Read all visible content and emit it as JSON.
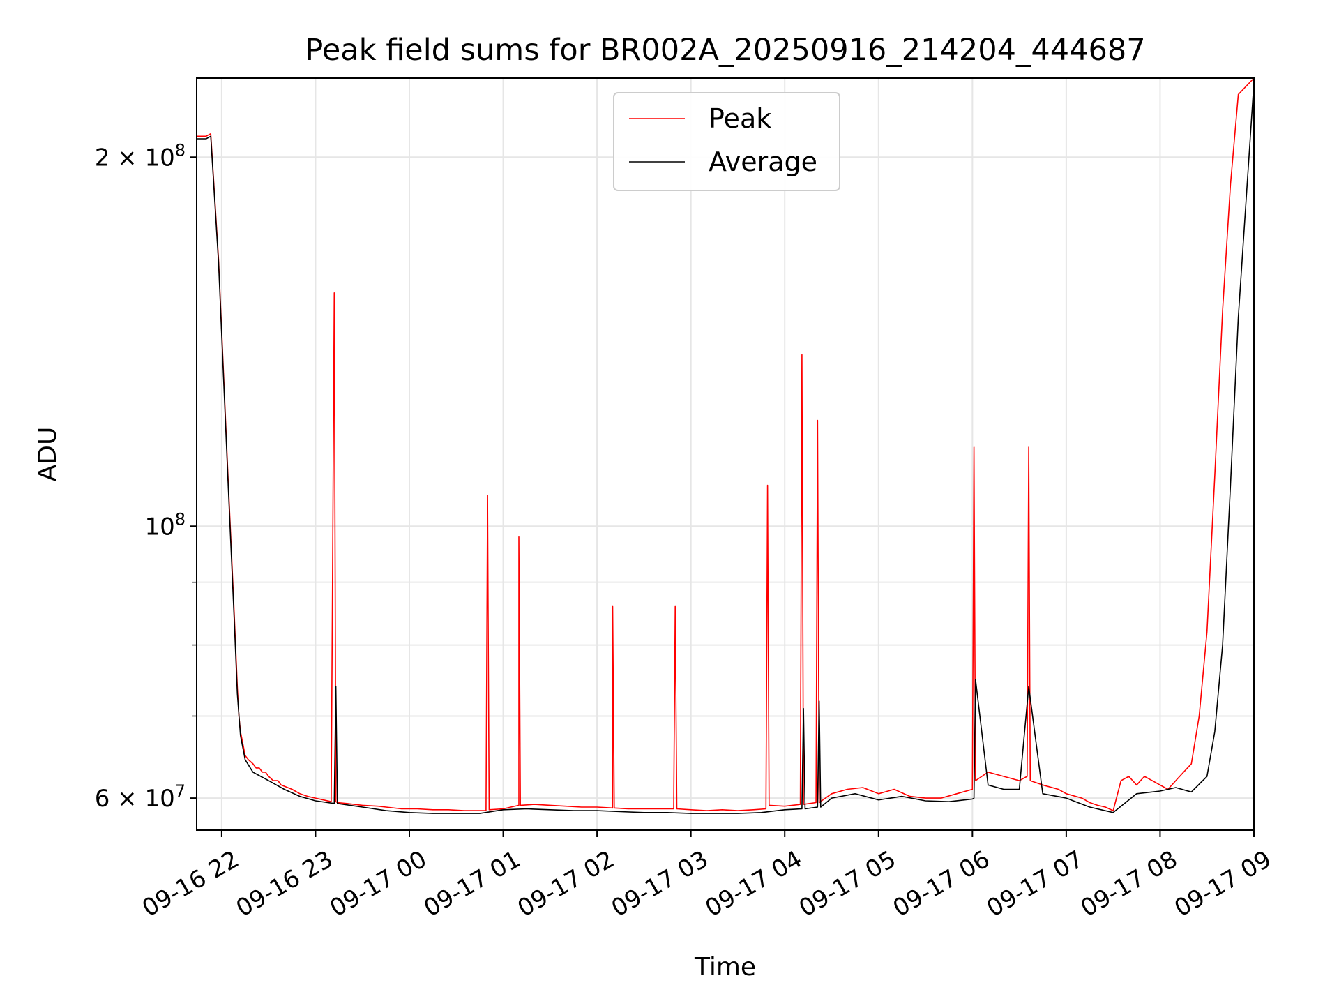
{
  "chart_data": {
    "type": "line",
    "title": "Peak field sums for BR002A_20250916_214204_444687",
    "xlabel": "Time",
    "ylabel": "ADU",
    "yscale": "log",
    "grid": true,
    "legend_placement": "upper center",
    "xlim": [
      "2025-09-16T21:44",
      "2025-09-17T09:00"
    ],
    "ylim": [
      56500000,
      232000000
    ],
    "x_ticks": [
      {
        "value": "2025-09-16T22:00",
        "label": "09-16 22"
      },
      {
        "value": "2025-09-16T23:00",
        "label": "09-16 23"
      },
      {
        "value": "2025-09-17T00:00",
        "label": "09-17 00"
      },
      {
        "value": "2025-09-17T01:00",
        "label": "09-17 01"
      },
      {
        "value": "2025-09-17T02:00",
        "label": "09-17 02"
      },
      {
        "value": "2025-09-17T03:00",
        "label": "09-17 03"
      },
      {
        "value": "2025-09-17T04:00",
        "label": "09-17 04"
      },
      {
        "value": "2025-09-17T05:00",
        "label": "09-17 05"
      },
      {
        "value": "2025-09-17T06:00",
        "label": "09-17 06"
      },
      {
        "value": "2025-09-17T07:00",
        "label": "09-17 07"
      },
      {
        "value": "2025-09-17T08:00",
        "label": "09-17 08"
      },
      {
        "value": "2025-09-17T09:00",
        "label": "09-17 09"
      }
    ],
    "y_major_ticks": [
      {
        "value": 60000000,
        "label_base": "6",
        "label_mid": " × 10",
        "label_exp": "7"
      },
      {
        "value": 100000000,
        "label_base": "",
        "label_mid": "10",
        "label_exp": "8"
      },
      {
        "value": 200000000,
        "label_base": "2",
        "label_mid": " × 10",
        "label_exp": "8"
      }
    ],
    "y_minor_ticks": [
      70000000,
      80000000,
      90000000
    ],
    "series": [
      {
        "name": "Peak",
        "color": "#ff0000",
        "x": [
          "2025-09-16T21:44",
          "2025-09-16T21:50",
          "2025-09-16T21:53",
          "2025-09-16T21:58",
          "2025-09-16T22:04",
          "2025-09-16T22:08",
          "2025-09-16T22:10",
          "2025-09-16T22:11",
          "2025-09-16T22:12",
          "2025-09-16T22:14",
          "2025-09-16T22:15",
          "2025-09-16T22:17",
          "2025-09-16T22:20",
          "2025-09-16T22:22",
          "2025-09-16T22:24",
          "2025-09-16T22:26",
          "2025-09-16T22:28",
          "2025-09-16T22:30",
          "2025-09-16T22:33",
          "2025-09-16T22:35",
          "2025-09-16T22:36",
          "2025-09-16T22:38",
          "2025-09-16T22:45",
          "2025-09-16T22:50",
          "2025-09-16T22:55",
          "2025-09-16T23:00",
          "2025-09-16T23:05",
          "2025-09-16T23:10",
          "2025-09-16T23:12",
          "2025-09-16T23:13",
          "2025-09-16T23:14",
          "2025-09-16T23:20",
          "2025-09-16T23:30",
          "2025-09-16T23:40",
          "2025-09-16T23:45",
          "2025-09-16T23:55",
          "2025-09-17T00:05",
          "2025-09-17T00:15",
          "2025-09-17T00:25",
          "2025-09-17T00:35",
          "2025-09-17T00:45",
          "2025-09-17T00:49",
          "2025-09-17T00:50",
          "2025-09-17T00:51",
          "2025-09-17T01:00",
          "2025-09-17T01:10",
          "2025-09-17T01:10",
          "2025-09-17T01:11",
          "2025-09-17T01:20",
          "2025-09-17T01:30",
          "2025-09-17T01:40",
          "2025-09-17T01:50",
          "2025-09-17T02:00",
          "2025-09-17T02:10",
          "2025-09-17T02:10",
          "2025-09-17T02:11",
          "2025-09-17T02:20",
          "2025-09-17T02:30",
          "2025-09-17T02:40",
          "2025-09-17T02:49",
          "2025-09-17T02:50",
          "2025-09-17T02:51",
          "2025-09-17T03:00",
          "2025-09-17T03:10",
          "2025-09-17T03:20",
          "2025-09-17T03:30",
          "2025-09-17T03:40",
          "2025-09-17T03:48",
          "2025-09-17T03:49",
          "2025-09-17T03:50",
          "2025-09-17T04:00",
          "2025-09-17T04:10",
          "2025-09-17T04:11",
          "2025-09-17T04:12",
          "2025-09-17T04:20",
          "2025-09-17T04:21",
          "2025-09-17T04:22",
          "2025-09-17T04:30",
          "2025-09-17T04:40",
          "2025-09-17T04:50",
          "2025-09-17T05:00",
          "2025-09-17T05:10",
          "2025-09-17T05:20",
          "2025-09-17T05:30",
          "2025-09-17T05:40",
          "2025-09-17T05:50",
          "2025-09-17T06:00",
          "2025-09-17T06:01",
          "2025-09-17T06:02",
          "2025-09-17T06:10",
          "2025-09-17T06:20",
          "2025-09-17T06:30",
          "2025-09-17T06:35",
          "2025-09-17T06:36",
          "2025-09-17T06:37",
          "2025-09-17T06:45",
          "2025-09-17T06:55",
          "2025-09-17T07:00",
          "2025-09-17T07:10",
          "2025-09-17T07:15",
          "2025-09-17T07:20",
          "2025-09-17T07:25",
          "2025-09-17T07:30",
          "2025-09-17T07:35",
          "2025-09-17T07:40",
          "2025-09-17T07:45",
          "2025-09-17T07:50",
          "2025-09-17T07:55",
          "2025-09-17T08:00",
          "2025-09-17T08:05",
          "2025-09-17T08:10",
          "2025-09-17T08:15",
          "2025-09-17T08:20",
          "2025-09-17T08:25",
          "2025-09-17T08:30",
          "2025-09-17T08:35",
          "2025-09-17T08:40",
          "2025-09-17T08:45",
          "2025-09-17T08:50",
          "2025-09-17T09:00"
        ],
        "y": [
          208000000,
          208000000,
          209000000,
          165000000,
          110000000,
          85000000,
          74000000,
          70000000,
          68000000,
          66000000,
          65000000,
          64500000,
          64000000,
          63500000,
          63500000,
          63000000,
          63000000,
          62500000,
          62000000,
          62000000,
          62000000,
          61500000,
          61000000,
          60500000,
          60200000,
          60000000,
          59800000,
          59600000,
          155000000,
          59600000,
          59500000,
          59400000,
          59200000,
          59100000,
          59000000,
          58800000,
          58800000,
          58700000,
          58700000,
          58600000,
          58600000,
          58600000,
          106000000,
          58700000,
          58800000,
          59200000,
          98000000,
          59200000,
          59300000,
          59200000,
          59100000,
          59000000,
          59000000,
          58900000,
          86000000,
          58900000,
          58800000,
          58800000,
          58800000,
          58800000,
          86000000,
          58800000,
          58700000,
          58600000,
          58700000,
          58600000,
          58700000,
          58800000,
          108000000,
          59200000,
          59100000,
          59300000,
          138000000,
          59300000,
          59500000,
          122000000,
          59500000,
          60500000,
          61000000,
          61200000,
          60500000,
          61000000,
          60200000,
          60000000,
          60000000,
          60500000,
          61000000,
          116000000,
          62000000,
          63000000,
          62500000,
          62000000,
          62500000,
          116000000,
          62000000,
          61500000,
          61000000,
          60500000,
          60000000,
          59500000,
          59200000,
          59000000,
          58600000,
          62000000,
          62500000,
          61500000,
          62500000,
          62000000,
          61500000,
          61000000,
          62000000,
          63000000,
          64000000,
          70000000,
          82000000,
          110000000,
          150000000,
          190000000,
          225000000,
          232000000
        ]
      },
      {
        "name": "Average",
        "color": "#000000",
        "x": [
          "2025-09-16T21:44",
          "2025-09-16T21:50",
          "2025-09-16T21:53",
          "2025-09-16T21:58",
          "2025-09-16T22:04",
          "2025-09-16T22:08",
          "2025-09-16T22:10",
          "2025-09-16T22:12",
          "2025-09-16T22:15",
          "2025-09-16T22:20",
          "2025-09-16T22:25",
          "2025-09-16T22:30",
          "2025-09-16T22:40",
          "2025-09-16T22:50",
          "2025-09-16T23:00",
          "2025-09-16T23:12",
          "2025-09-16T23:13",
          "2025-09-16T23:14",
          "2025-09-16T23:30",
          "2025-09-16T23:45",
          "2025-09-17T00:00",
          "2025-09-17T00:15",
          "2025-09-17T00:30",
          "2025-09-17T00:45",
          "2025-09-17T01:00",
          "2025-09-17T01:15",
          "2025-09-17T01:30",
          "2025-09-17T01:45",
          "2025-09-17T02:00",
          "2025-09-17T02:15",
          "2025-09-17T02:30",
          "2025-09-17T02:45",
          "2025-09-17T03:00",
          "2025-09-17T03:15",
          "2025-09-17T03:30",
          "2025-09-17T03:45",
          "2025-09-17T04:00",
          "2025-09-17T04:11",
          "2025-09-17T04:12",
          "2025-09-17T04:13",
          "2025-09-17T04:21",
          "2025-09-17T04:22",
          "2025-09-17T04:23",
          "2025-09-17T04:30",
          "2025-09-17T04:45",
          "2025-09-17T05:00",
          "2025-09-17T05:15",
          "2025-09-17T05:30",
          "2025-09-17T05:45",
          "2025-09-17T06:00",
          "2025-09-17T06:01",
          "2025-09-17T06:02",
          "2025-09-17T06:10",
          "2025-09-17T06:20",
          "2025-09-17T06:30",
          "2025-09-17T06:36",
          "2025-09-17T06:45",
          "2025-09-17T07:00",
          "2025-09-17T07:15",
          "2025-09-17T07:30",
          "2025-09-17T07:45",
          "2025-09-17T08:00",
          "2025-09-17T08:10",
          "2025-09-17T08:20",
          "2025-09-17T08:30",
          "2025-09-17T08:35",
          "2025-09-17T08:40",
          "2025-09-17T08:45",
          "2025-09-17T08:50",
          "2025-09-17T09:00"
        ],
        "y": [
          207000000,
          207000000,
          208000000,
          164000000,
          109000000,
          84000000,
          73000000,
          67500000,
          64500000,
          63000000,
          62500000,
          62000000,
          61000000,
          60200000,
          59700000,
          59400000,
          74000000,
          59400000,
          59000000,
          58600000,
          58400000,
          58300000,
          58300000,
          58300000,
          58700000,
          58800000,
          58700000,
          58600000,
          58600000,
          58500000,
          58400000,
          58400000,
          58300000,
          58300000,
          58300000,
          58400000,
          58700000,
          58800000,
          71000000,
          58800000,
          59000000,
          72000000,
          59000000,
          60000000,
          60500000,
          59800000,
          60200000,
          59700000,
          59600000,
          59900000,
          60000000,
          75000000,
          61500000,
          61000000,
          61000000,
          74000000,
          60500000,
          60000000,
          59000000,
          58400000,
          60500000,
          60800000,
          61200000,
          60700000,
          62500000,
          68000000,
          80000000,
          108000000,
          148000000,
          230000000
        ]
      }
    ]
  }
}
